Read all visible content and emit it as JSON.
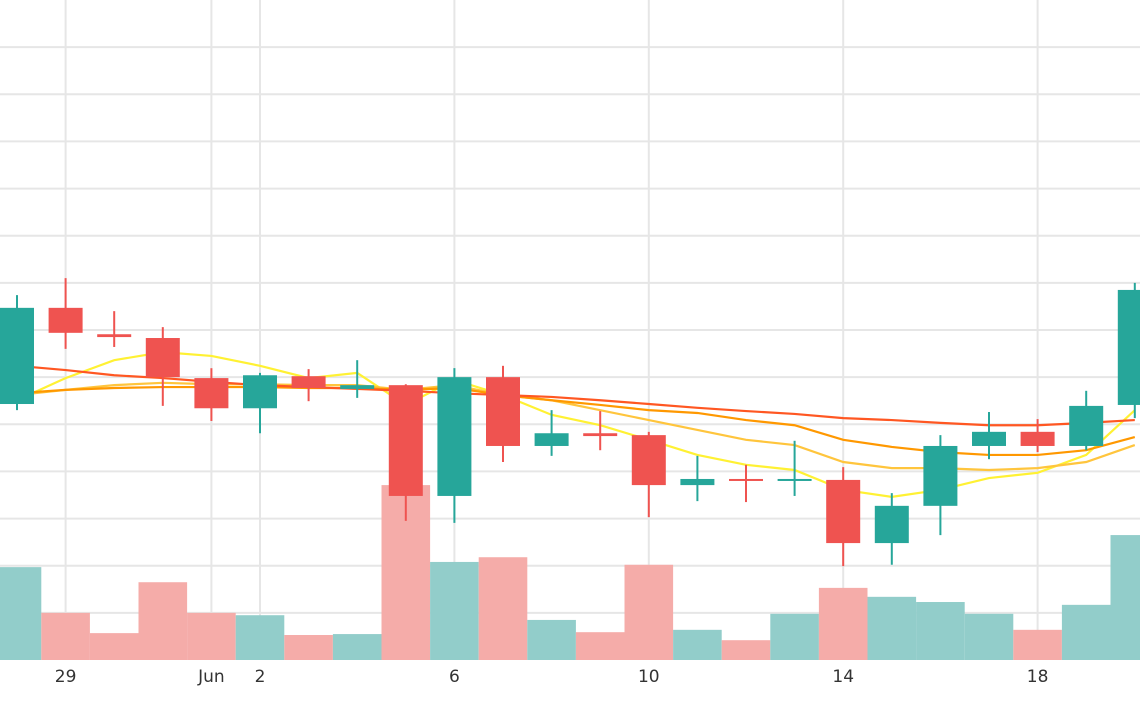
{
  "chart_data": {
    "type": "candlestick",
    "categories": [
      null,
      "29",
      null,
      null,
      "Jun",
      "2",
      null,
      null,
      null,
      "6",
      null,
      null,
      null,
      "10",
      null,
      null,
      null,
      "14",
      null,
      null,
      null,
      "18",
      null,
      null
    ],
    "open": [
      54.3,
      74.7,
      69.1,
      68.3,
      59.8,
      53.4,
      60.2,
      57.5,
      58.3,
      34.8,
      60.0,
      45.4,
      48.1,
      47.7,
      37.1,
      38.4,
      38.0,
      38.2,
      24.8,
      32.7,
      45.4,
      48.4,
      45.4,
      54.1
    ],
    "high": [
      77.4,
      81.0,
      74.0,
      70.6,
      61.9,
      60.9,
      61.7,
      63.6,
      58.5,
      61.9,
      62.4,
      53.0,
      52.8,
      48.4,
      43.3,
      41.4,
      46.5,
      40.9,
      35.4,
      47.7,
      52.6,
      51.1,
      57.1,
      80.0
    ],
    "low": [
      53.0,
      66.0,
      66.4,
      53.9,
      50.7,
      48.1,
      54.9,
      55.6,
      29.5,
      29.1,
      42.0,
      43.3,
      44.5,
      30.3,
      33.7,
      33.5,
      34.8,
      19.9,
      20.2,
      26.5,
      42.6,
      44.1,
      44.5,
      51.3
    ],
    "close": [
      74.7,
      69.4,
      68.5,
      60.0,
      53.4,
      60.4,
      57.7,
      58.3,
      34.8,
      60.0,
      45.4,
      48.1,
      47.5,
      37.1,
      38.4,
      38.0,
      38.4,
      24.8,
      32.7,
      45.4,
      48.4,
      45.4,
      53.9,
      78.5
    ],
    "volume": [
      19.7,
      10.0,
      5.7,
      16.5,
      10.0,
      9.5,
      5.3,
      5.5,
      37.1,
      20.8,
      21.8,
      8.5,
      5.9,
      20.2,
      6.4,
      4.2,
      9.8,
      15.3,
      13.4,
      12.3,
      9.8,
      6.4,
      11.7,
      26.5
    ],
    "up_color": "#26a69a",
    "down_color": "#ef5350",
    "volume_up_color": "#92cdca",
    "volume_down_color": "#f5aca9",
    "series": [
      {
        "color": "#fff133",
        "values": [
          55.1,
          59.8,
          63.6,
          65.3,
          64.5,
          62.4,
          59.8,
          60.9,
          54.1,
          59.4,
          56.2,
          52.0,
          49.8,
          46.7,
          43.5,
          41.4,
          40.3,
          36.1,
          34.6,
          36.1,
          38.6,
          39.7,
          43.5,
          53.0
        ]
      },
      {
        "color": "#ffc53d",
        "values": [
          56.2,
          57.3,
          58.3,
          58.8,
          58.5,
          58.5,
          58.3,
          58.3,
          57.3,
          58.3,
          56.2,
          55.1,
          53.0,
          50.9,
          48.8,
          46.7,
          45.6,
          42.0,
          40.7,
          40.7,
          40.3,
          40.7,
          42.0,
          45.6
        ]
      },
      {
        "color": "#ff9800",
        "values": [
          56.6,
          57.3,
          57.7,
          57.9,
          57.9,
          57.9,
          57.7,
          57.7,
          57.3,
          57.7,
          56.2,
          55.1,
          54.1,
          53.0,
          52.4,
          50.9,
          49.8,
          46.7,
          45.2,
          44.1,
          43.5,
          43.5,
          44.5,
          47.3
        ]
      },
      {
        "color": "#ff5722",
        "values": [
          62.4,
          61.5,
          60.4,
          59.8,
          59.0,
          58.3,
          57.9,
          57.5,
          57.1,
          56.6,
          56.2,
          55.8,
          55.1,
          54.3,
          53.5,
          52.8,
          52.2,
          51.3,
          50.9,
          50.3,
          49.8,
          49.8,
          50.3,
          50.9
        ]
      }
    ],
    "ylim": [
      0,
      140
    ],
    "y2lim": [
      0,
      140
    ],
    "yticks": [
      10,
      20,
      30,
      40,
      50,
      60,
      70,
      80,
      90,
      100,
      110,
      120,
      130
    ],
    "grid": true
  }
}
